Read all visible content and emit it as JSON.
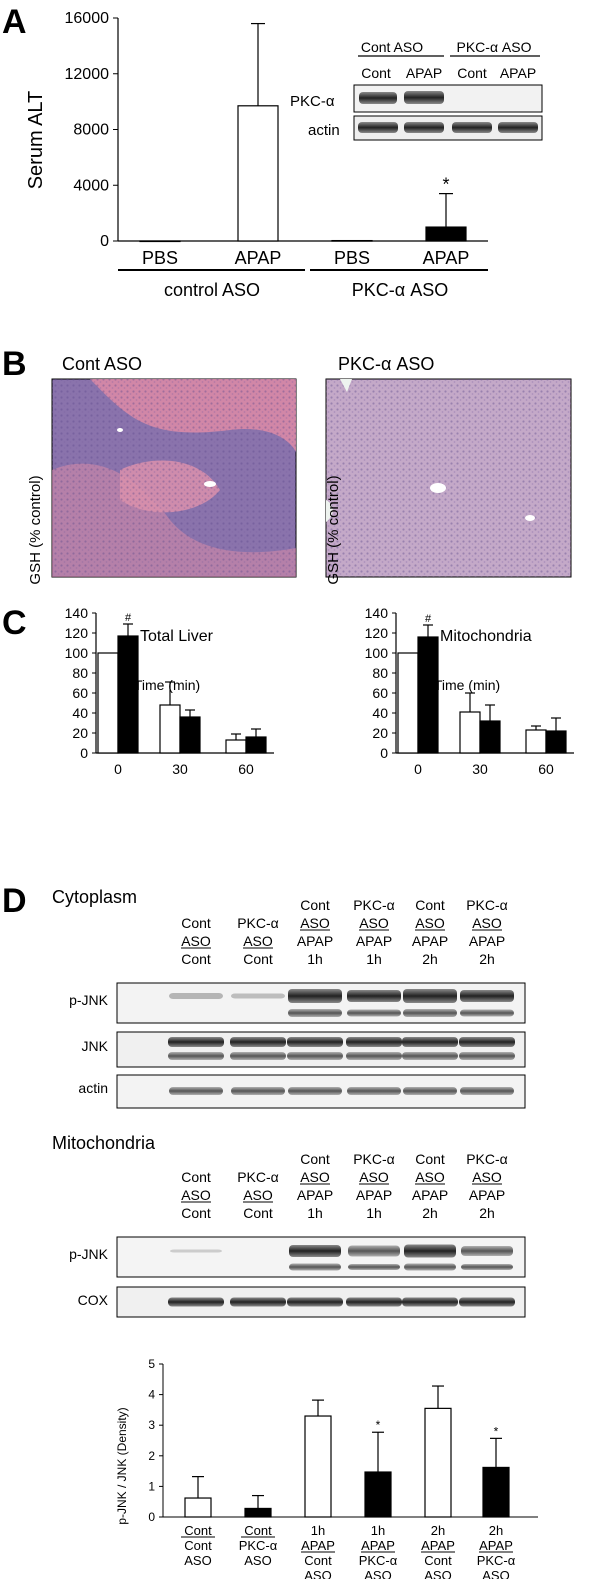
{
  "panels": {
    "a": "A",
    "b": "B",
    "c": "C",
    "d": "D"
  },
  "figA": {
    "ylabel": "Serum ALT",
    "groups": [
      "control ASO",
      "PKC-α ASO"
    ],
    "blot": {
      "group_headers": [
        "Cont ASO",
        "PKC-α ASO"
      ],
      "lanes": [
        "Cont",
        "APAP",
        "Cont",
        "APAP"
      ],
      "rows": [
        "PKC-α",
        "actin"
      ]
    }
  },
  "figB": {
    "left_title": "Cont ASO",
    "right_title": "PKC-α ASO"
  },
  "figC": {
    "ylabel": "GSH (% control)",
    "xlabel": "Time (min)"
  },
  "figD": {
    "cyto_title": "Cytoplasm",
    "mito_title": "Mitochondria",
    "lane_headers": [
      [
        "Cont",
        "ASO",
        "Cont"
      ],
      [
        "PKC-α",
        "ASO",
        "Cont"
      ],
      [
        "Cont",
        "ASO",
        "APAP",
        "1h"
      ],
      [
        "PKC-α",
        "ASO",
        "APAP",
        "1h"
      ],
      [
        "Cont",
        "ASO",
        "APAP",
        "2h"
      ],
      [
        "PKC-α",
        "ASO",
        "APAP",
        "2h"
      ]
    ],
    "cyto_rows": [
      "p-JNK",
      "JNK",
      "actin"
    ],
    "mito_rows": [
      "p-JNK",
      "COX"
    ]
  },
  "colors": {
    "filled": "#000000",
    "open": "#ffffff",
    "axis": "#000000"
  },
  "chart_data": [
    {
      "type": "bar",
      "panel": "A",
      "categories": [
        "PBS",
        "APAP",
        "PBS",
        "APAP"
      ],
      "values": [
        0,
        9700,
        30,
        1000
      ],
      "errors": [
        0,
        5900,
        0,
        2400
      ],
      "fills": [
        "open",
        "open",
        "filled",
        "filled"
      ],
      "annotations": [
        "",
        "",
        "",
        "*"
      ],
      "ylabel": "Serum ALT",
      "ylim": [
        0,
        16000
      ],
      "yticks": [
        0,
        4000,
        8000,
        12000,
        16000
      ]
    },
    {
      "type": "bar",
      "panel": "C-left",
      "title": "Total Liver",
      "categories": [
        "0",
        "30",
        "60"
      ],
      "series": [
        {
          "values": [
            100,
            48,
            13
          ],
          "errors": [
            0,
            23,
            6
          ],
          "fill": "open"
        },
        {
          "values": [
            117,
            36,
            16
          ],
          "errors": [
            12,
            7,
            8
          ],
          "fill": "filled"
        }
      ],
      "annotations": [
        "#",
        "",
        ""
      ],
      "ylabel": "GSH (% control)",
      "xlabel": "Time (min)",
      "ylim": [
        0,
        140
      ],
      "yticks": [
        0,
        20,
        40,
        60,
        80,
        100,
        120,
        140
      ]
    },
    {
      "type": "bar",
      "panel": "C-right",
      "title": "Mitochondria",
      "categories": [
        "0",
        "30",
        "60"
      ],
      "series": [
        {
          "values": [
            100,
            41,
            23
          ],
          "errors": [
            0,
            19,
            4
          ],
          "fill": "open"
        },
        {
          "values": [
            116,
            32,
            22
          ],
          "errors": [
            12,
            16,
            13
          ],
          "fill": "filled"
        }
      ],
      "annotations": [
        "#",
        "",
        ""
      ],
      "ylabel": "GSH (% control)",
      "xlabel": "Time (min)",
      "ylim": [
        0,
        140
      ],
      "yticks": [
        0,
        20,
        40,
        60,
        80,
        100,
        120,
        140
      ]
    },
    {
      "type": "bar",
      "panel": "D",
      "categories": [
        [
          "Cont",
          "Cont",
          "ASO"
        ],
        [
          "Cont",
          "PKC-α",
          "ASO"
        ],
        [
          "1h",
          "APAP",
          "Cont",
          "ASO"
        ],
        [
          "1h",
          "APAP",
          "PKC-α",
          "ASO"
        ],
        [
          "2h",
          "APAP",
          "Cont",
          "ASO"
        ],
        [
          "2h",
          "APAP",
          "PKC-α",
          "ASO"
        ]
      ],
      "values": [
        0.62,
        0.28,
        3.3,
        1.47,
        3.55,
        1.62
      ],
      "errors": [
        0.7,
        0.42,
        0.52,
        1.3,
        0.73,
        0.95
      ],
      "fills": [
        "open",
        "filled",
        "open",
        "filled",
        "open",
        "filled"
      ],
      "annotations": [
        "",
        "",
        "",
        "*",
        "",
        "*"
      ],
      "ylabel": "p-JNK / JNK (Density)",
      "ylim": [
        0,
        5
      ],
      "yticks": [
        0,
        1,
        2,
        3,
        4,
        5
      ]
    }
  ]
}
